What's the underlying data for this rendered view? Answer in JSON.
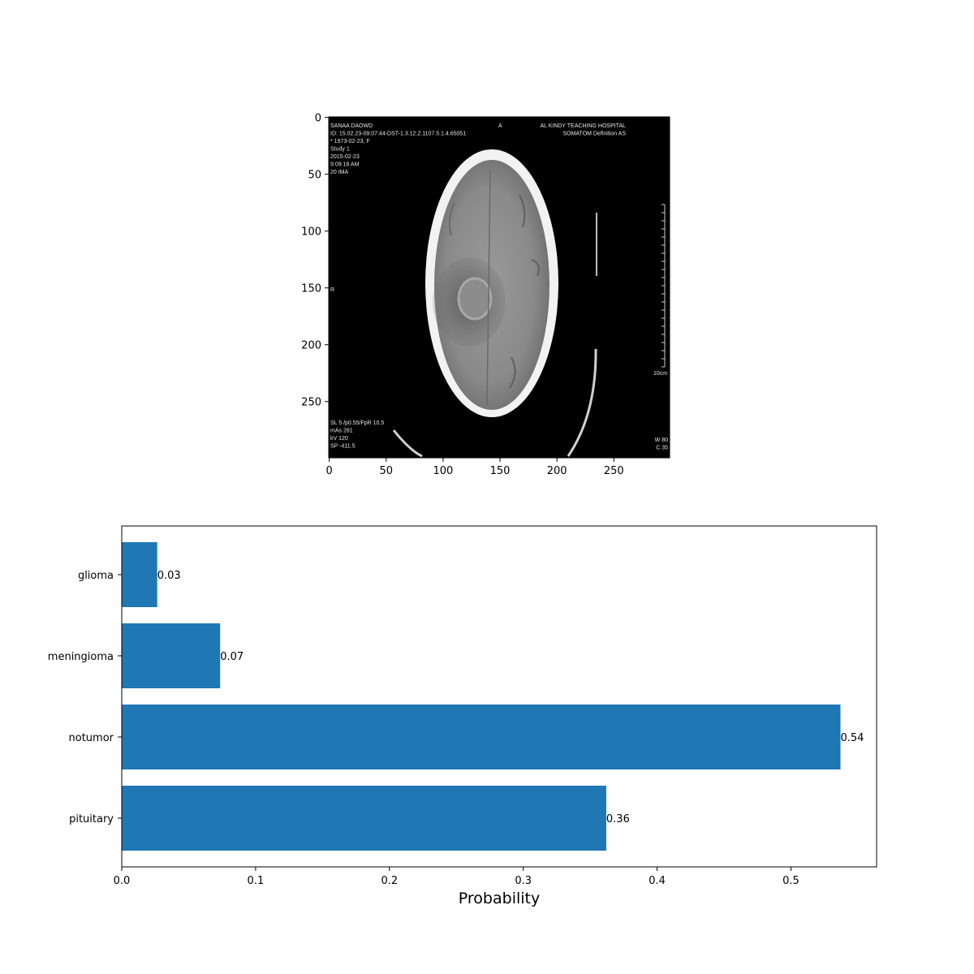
{
  "ct_image": {
    "x_ticks": [
      "0",
      "50",
      "100",
      "150",
      "200",
      "250"
    ],
    "y_ticks": [
      "0",
      "50",
      "100",
      "150",
      "200",
      "250"
    ],
    "x_range": [
      0,
      299
    ],
    "y_range": [
      0,
      299
    ],
    "overlay_text": {
      "top_left": [
        "SANAA DAOWD",
        "ID: 15.02.23-09:07:44-DST-1.3.12.2.1107.5.1.4.65051",
        "* 1973-02-23, F",
        "Study 1",
        "2015-02-23",
        "9:09:18 AM",
        "20 IMA"
      ],
      "top_center": "A",
      "top_right": [
        "AL KINDY TEACHING HOSPITAL",
        "SOMATOM Definition AS"
      ],
      "left_marker": "R",
      "scale_label": "10cm",
      "bottom_left": [
        "SL 5 /p0.55/FpR 10.5",
        "mAs 281",
        "kV 120",
        "SP -411.5"
      ],
      "bottom_right": [
        "W 80",
        "C 35"
      ]
    }
  },
  "chart_data": {
    "type": "bar",
    "orientation": "horizontal",
    "categories": [
      "glioma",
      "meningioma",
      "notumor",
      "pituitary"
    ],
    "values": [
      0.0265,
      0.0735,
      0.537,
      0.362
    ],
    "value_labels": [
      "0.03",
      "0.07",
      "0.54",
      "0.36"
    ],
    "xlabel": "Probability",
    "xlim": [
      0,
      0.564
    ],
    "x_ticks": [
      0.0,
      0.1,
      0.2,
      0.3,
      0.4,
      0.5
    ],
    "x_tick_labels": [
      "0.0",
      "0.1",
      "0.2",
      "0.3",
      "0.4",
      "0.5"
    ],
    "bar_color": "#1f77b4",
    "grid": false,
    "legend": "none"
  }
}
